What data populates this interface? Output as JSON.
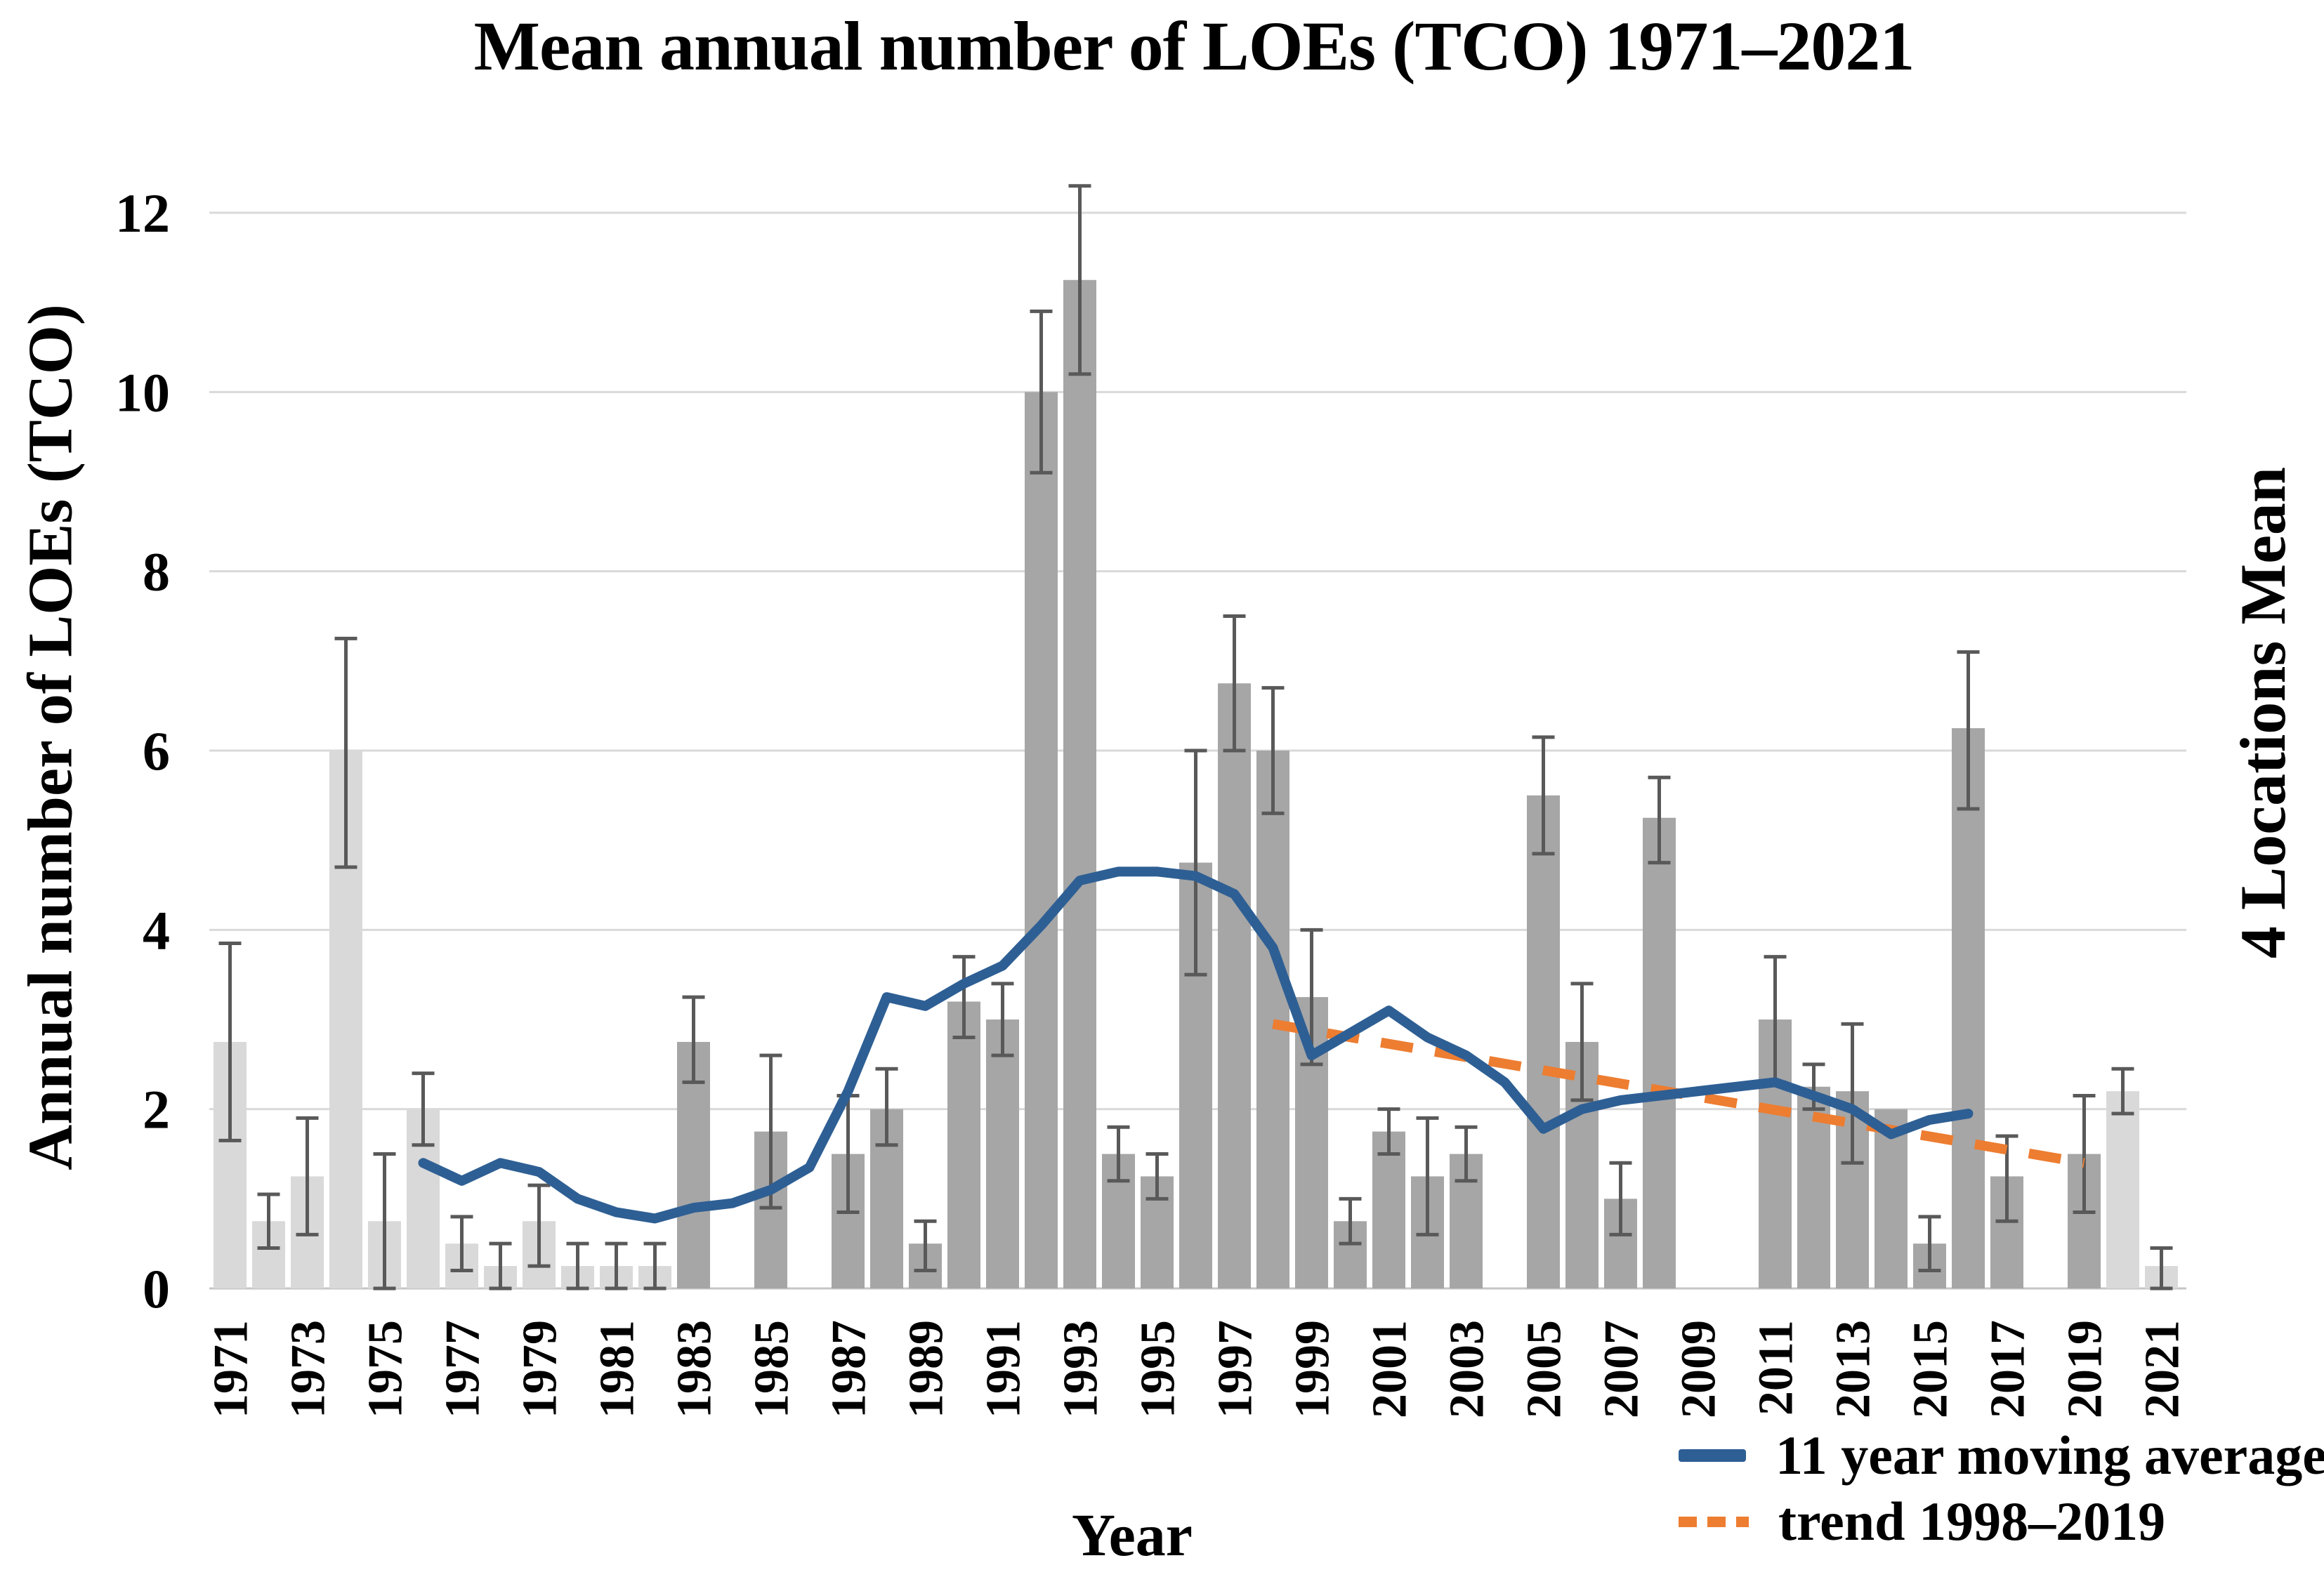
{
  "chart_data": {
    "type": "bar",
    "title": "Mean annual number of LOEs (TCO) 1971–2021",
    "xlabel": "Year",
    "ylabel": "Annual number of LOEs (TCO)",
    "ylabel_right": "4 Locations Mean",
    "ylim": [
      0,
      12
    ],
    "y_ticks": [
      0,
      2,
      4,
      6,
      8,
      10,
      12
    ],
    "x_ticks": [
      1971,
      1973,
      1975,
      1977,
      1979,
      1981,
      1983,
      1985,
      1987,
      1989,
      1991,
      1993,
      1995,
      1997,
      1999,
      2001,
      2003,
      2005,
      2007,
      2009,
      2011,
      2013,
      2015,
      2017,
      2019,
      2021
    ],
    "grid": true,
    "legend_position": "bottom-right",
    "colors": {
      "bar_light": "#d9d9d9",
      "bar_dark": "#a6a6a6",
      "error_bar": "#595959",
      "grid": "#d9d9d9",
      "baseline": "#c6c6c6",
      "moving_average": "#2e5f94",
      "trend": "#ed7d31"
    },
    "categories": [
      1971,
      1972,
      1973,
      1974,
      1975,
      1976,
      1977,
      1978,
      1979,
      1980,
      1981,
      1982,
      1983,
      1984,
      1985,
      1986,
      1987,
      1988,
      1989,
      1990,
      1991,
      1992,
      1993,
      1994,
      1995,
      1996,
      1997,
      1998,
      1999,
      2000,
      2001,
      2002,
      2003,
      2004,
      2005,
      2006,
      2007,
      2008,
      2009,
      2010,
      2011,
      2012,
      2013,
      2014,
      2015,
      2016,
      2017,
      2018,
      2019,
      2020,
      2021
    ],
    "series": [
      {
        "name": "Annual number of LOEs (TCO)",
        "type": "bar",
        "values": [
          2.75,
          0.75,
          1.25,
          6,
          0.75,
          2,
          0.5,
          0.25,
          0.75,
          0.25,
          0.25,
          0.25,
          2.75,
          null,
          1.75,
          null,
          1.5,
          2,
          0.5,
          3.2,
          3,
          10,
          11.25,
          1.5,
          1.25,
          4.75,
          6.75,
          6,
          3.25,
          0.75,
          1.75,
          1.25,
          1.5,
          null,
          5.5,
          2.75,
          1,
          5.25,
          null,
          null,
          3,
          2.25,
          2.2,
          2,
          0.5,
          6.25,
          1.25,
          null,
          1.5,
          2.2,
          0.25
        ],
        "err_low": [
          1.65,
          0.45,
          0.6,
          4.7,
          0,
          1.6,
          0.2,
          0,
          0.25,
          0,
          0,
          0,
          2.3,
          null,
          0.9,
          null,
          0.85,
          1.6,
          0.2,
          2.8,
          2.6,
          9.1,
          10.2,
          1.2,
          1,
          3.5,
          6,
          5.3,
          2.5,
          0.5,
          1.5,
          0.6,
          1.2,
          null,
          4.85,
          2.1,
          0.6,
          4.75,
          null,
          null,
          2.3,
          2,
          1.4,
          null,
          0.2,
          5.35,
          0.75,
          null,
          0.85,
          1.95,
          0
        ],
        "err_high": [
          3.85,
          1.05,
          1.9,
          7.25,
          1.5,
          2.4,
          0.8,
          0.5,
          1.15,
          0.5,
          0.5,
          0.5,
          3.25,
          null,
          2.6,
          null,
          2.15,
          2.45,
          0.75,
          3.7,
          3.4,
          10.9,
          12.3,
          1.8,
          1.5,
          6,
          7.5,
          6.7,
          4,
          1,
          2,
          1.9,
          1.8,
          null,
          6.15,
          3.4,
          1.4,
          5.7,
          null,
          null,
          3.7,
          2.5,
          2.95,
          null,
          0.8,
          7.1,
          1.7,
          null,
          2.15,
          2.45,
          0.45
        ],
        "shades": [
          "light",
          "light",
          "light",
          "light",
          "light",
          "light",
          "light",
          "light",
          "light",
          "light",
          "light",
          "light",
          "dark",
          null,
          "dark",
          null,
          "dark",
          "dark",
          "dark",
          "dark",
          "dark",
          "dark",
          "dark",
          "dark",
          "dark",
          "dark",
          "dark",
          "dark",
          "dark",
          "dark",
          "dark",
          "dark",
          "dark",
          null,
          "dark",
          "dark",
          "dark",
          "dark",
          null,
          null,
          "dark",
          "dark",
          "dark",
          "dark",
          "dark",
          "dark",
          "dark",
          null,
          "dark",
          "light",
          "light"
        ]
      },
      {
        "name": "11 year moving average",
        "type": "line",
        "x_start": 1976,
        "x_end": 2016,
        "values": [
          1.4,
          1.2,
          1.4,
          1.3,
          1.0,
          0.85,
          0.78,
          0.9,
          0.95,
          1.1,
          1.35,
          2.2,
          3.25,
          3.15,
          3.4,
          3.6,
          4.05,
          4.55,
          4.65,
          4.65,
          4.6,
          4.4,
          3.8,
          2.6,
          2.85,
          3.1,
          2.8,
          2.6,
          2.3,
          1.78,
          2.0,
          2.1,
          2.15,
          2.2,
          2.25,
          2.3,
          2.15,
          2.0,
          1.72,
          1.88,
          1.95
        ]
      },
      {
        "name": "trend 1998–2019",
        "type": "dashed-line",
        "x1": 1998,
        "y1": 2.95,
        "x2": 2019,
        "y2": 1.4
      }
    ]
  }
}
